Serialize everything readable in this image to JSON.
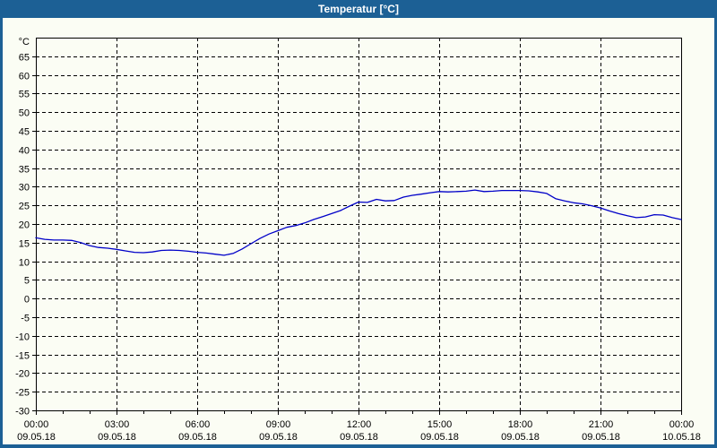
{
  "window": {
    "title": "Temperatur [°C]",
    "colors": {
      "title_bar": "#1C6095",
      "border": "#1C6095",
      "title_text": "#FFFFFF",
      "content_background": "#FBFDF4",
      "grid": "#000000",
      "text": "#000000"
    }
  },
  "chart_data": {
    "type": "line",
    "title": "Temperatur [°C]",
    "y_unit_label": "°C",
    "ylabel": "Temperatur",
    "xlabel": "",
    "ylim": [
      -30,
      70
    ],
    "y_tick_min": -30,
    "y_tick_max": 65,
    "y_tick_step": 5,
    "x_range_hours": [
      0,
      24
    ],
    "x_minor_step_hours": 1,
    "grid": "dashed",
    "legend_position": "none",
    "line_color": "#0000C8",
    "x_ticks": [
      {
        "hour": 0,
        "time": "00:00",
        "date": "09.05.18"
      },
      {
        "hour": 3,
        "time": "03:00",
        "date": "09.05.18"
      },
      {
        "hour": 6,
        "time": "06:00",
        "date": "09.05.18"
      },
      {
        "hour": 9,
        "time": "09:00",
        "date": "09.05.18"
      },
      {
        "hour": 12,
        "time": "12:00",
        "date": "09.05.18"
      },
      {
        "hour": 15,
        "time": "15:00",
        "date": "09.05.18"
      },
      {
        "hour": 18,
        "time": "18:00",
        "date": "09.05.18"
      },
      {
        "hour": 21,
        "time": "21:00",
        "date": "09.05.18"
      },
      {
        "hour": 24,
        "time": "00:00",
        "date": "10.05.18"
      }
    ],
    "series": [
      {
        "name": "Temperatur",
        "x_hours": [
          0,
          0.33,
          0.67,
          1,
          1.33,
          1.67,
          2,
          2.33,
          2.67,
          3,
          3.33,
          3.67,
          4,
          4.33,
          4.67,
          5,
          5.33,
          5.67,
          6,
          6.33,
          6.67,
          7,
          7.33,
          7.67,
          8,
          8.33,
          8.67,
          9,
          9.33,
          9.67,
          10,
          10.33,
          10.67,
          11,
          11.33,
          11.67,
          12,
          12.33,
          12.67,
          13,
          13.33,
          13.67,
          14,
          14.33,
          14.67,
          15,
          15.33,
          15.67,
          16,
          16.33,
          16.67,
          17,
          17.33,
          17.67,
          18,
          18.33,
          18.67,
          19,
          19.33,
          19.67,
          20,
          20.33,
          20.67,
          21,
          21.33,
          21.67,
          22,
          22.33,
          22.67,
          23,
          23.33,
          23.67,
          24
        ],
        "values": [
          16.3,
          15.9,
          15.7,
          15.7,
          15.6,
          15.0,
          14.2,
          13.7,
          13.5,
          13.2,
          12.8,
          12.4,
          12.3,
          12.5,
          12.9,
          13.0,
          12.9,
          12.7,
          12.4,
          12.2,
          11.9,
          11.6,
          12.1,
          13.3,
          14.7,
          16.1,
          17.3,
          18.2,
          19.1,
          19.6,
          20.3,
          21.2,
          22.0,
          22.8,
          23.6,
          24.8,
          25.9,
          25.8,
          26.6,
          26.2,
          26.3,
          27.2,
          27.7,
          28.0,
          28.4,
          28.7,
          28.6,
          28.7,
          28.8,
          29.1,
          28.7,
          28.8,
          29.0,
          29.0,
          29.0,
          28.9,
          28.6,
          28.2,
          26.8,
          26.2,
          25.7,
          25.4,
          24.9,
          24.3,
          23.5,
          22.8,
          22.2,
          21.7,
          21.9,
          22.5,
          22.4,
          21.7,
          21.2
        ]
      }
    ]
  }
}
